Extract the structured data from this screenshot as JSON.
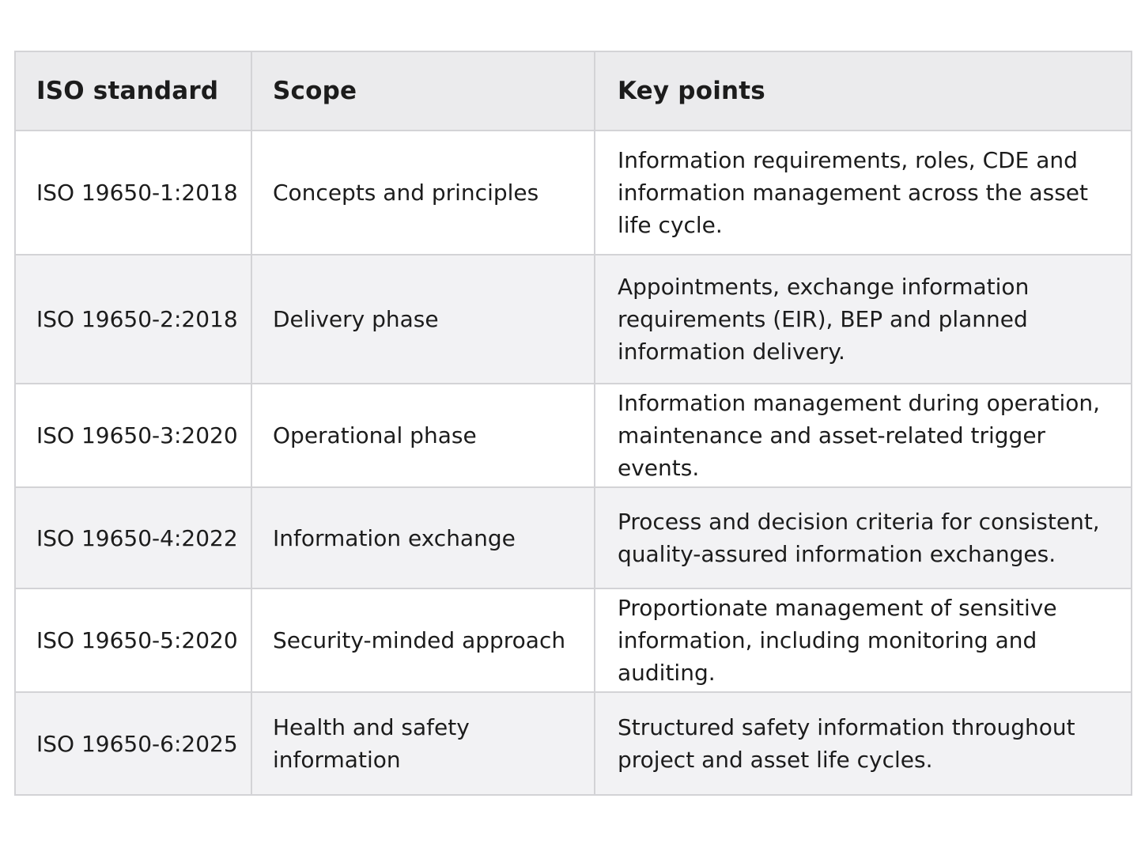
{
  "table": {
    "headers": [
      "ISO standard",
      "Scope",
      "Key points"
    ],
    "rows": [
      {
        "standard": "ISO 19650-1:2018",
        "scope": "Concepts and principles",
        "key_points": "Information requirements, roles, CDE and information management across the asset life cycle."
      },
      {
        "standard": "ISO 19650-2:2018",
        "scope": "Delivery phase",
        "key_points": "Appointments, exchange information requirements (EIR), BEP and planned information delivery."
      },
      {
        "standard": "ISO 19650-3:2020",
        "scope": "Operational phase",
        "key_points": "Information management during operation, maintenance and asset-related trigger events."
      },
      {
        "standard": "ISO 19650-4:2022",
        "scope": "Information exchange",
        "key_points": "Process and decision criteria for consistent, quality-assured information exchanges."
      },
      {
        "standard": "ISO 19650-5:2020",
        "scope": "Security-minded approach",
        "key_points": "Proportionate management of sensitive information, including monitoring and auditing."
      },
      {
        "standard": "ISO 19650-6:2025",
        "scope": "Health and safety information",
        "key_points": "Structured safety information throughout project and asset life cycles."
      }
    ]
  }
}
